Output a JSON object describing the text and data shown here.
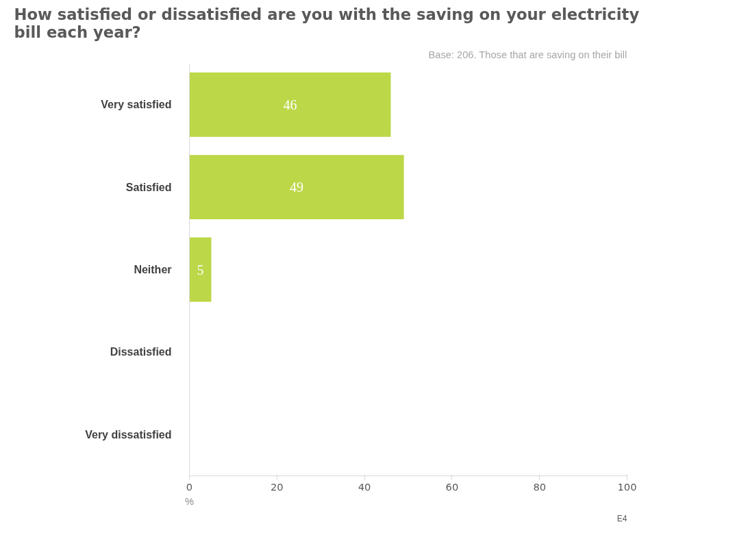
{
  "chart_data": {
    "type": "bar",
    "orientation": "horizontal",
    "title": "How satisfied or dissatisfied are you with the saving on your electricity bill each year?",
    "subtitle": "Base: 206. Those that are saving on their bill",
    "categories": [
      "Very satisfied",
      "Satisfied",
      "Neither",
      "Dissatisfied",
      "Very dissatisfied"
    ],
    "values": [
      46,
      49,
      5,
      0,
      0
    ],
    "value_labels": [
      "46",
      "49",
      "5",
      null,
      null
    ],
    "color": "#bcd747",
    "xlim": [
      0,
      100
    ],
    "xticks": [
      0,
      20,
      40,
      60,
      80,
      100
    ],
    "xlabel": "%",
    "annotations": [
      "E4"
    ],
    "grid": false
  }
}
